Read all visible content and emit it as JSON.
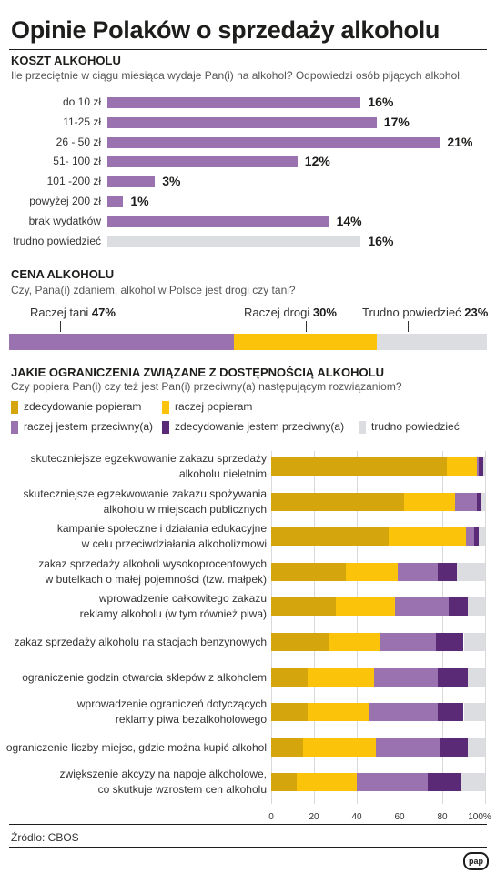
{
  "title": "Opinie Polaków o sprzedaży alkoholu",
  "colors": {
    "purple": "#9b72b0",
    "grey": "#dcdde0",
    "dark_yellow": "#d4a50c",
    "yellow": "#fcc30b",
    "light_purple": "#9b72b0",
    "dark_purple": "#5b2a77"
  },
  "chart_data": [
    {
      "type": "bar",
      "orientation": "horizontal",
      "title": "KOSZT ALKOHOLU",
      "subtitle": "Ile przeciętnie w ciągu miesiąca wydaje Pan(i) na alkohol? Odpowiedzi osób pijących alkohol.",
      "categories": [
        "do 10 zł",
        "11-25 zł",
        "26 - 50 zł",
        "51- 100 zł",
        "101 -200 zł",
        "powyżej 200 zł",
        "brak wydatków",
        "trudno powiedzieć"
      ],
      "values": [
        16,
        17,
        21,
        12,
        3,
        1,
        14,
        16
      ],
      "value_labels": [
        "16%",
        "17%",
        "21%",
        "12%",
        "3%",
        "1%",
        "14%",
        "16%"
      ]
    },
    {
      "type": "bar",
      "orientation": "horizontal",
      "stacked": true,
      "title": "CENA ALKOHOLU",
      "subtitle": "Czy, Pana(i) zdaniem, alkohol w Polsce jest drogi czy tani?",
      "series": [
        {
          "name": "Raczej tani",
          "value": 47,
          "label": "47%"
        },
        {
          "name": "Raczej drogi",
          "value": 30,
          "label": "30%"
        },
        {
          "name": "Trudno powiedzieć",
          "value": 23,
          "label": "23%"
        }
      ]
    },
    {
      "type": "bar",
      "orientation": "horizontal",
      "stacked": true,
      "title": "JAKIE OGRANICZENIA ZWIĄZANE Z DOSTĘPNOŚCIĄ ALKOHOLU",
      "subtitle": "Czy popiera Pan(i) czy też jest Pan(i) przeciwny(a) następującym rozwiązaniom?",
      "legend": [
        "zdecydowanie popieram",
        "raczej popieram",
        "raczej jestem przeciwny(a)",
        "zdecydowanie jestem przeciwny(a)",
        "trudno powiedzieć"
      ],
      "categories": [
        [
          "skuteczniejsze egzekwowanie zakazu sprzedaży",
          "alkoholu nieletnim"
        ],
        [
          "skuteczniejsze egzekwowanie zakazu spożywania",
          "alkoholu w miejscach publicznych"
        ],
        [
          "kampanie społeczne i działania edukacyjne",
          "w celu przeciwdziałania alkoholizmowi"
        ],
        [
          "zakaz sprzedaży alkoholi wysokoprocentowych",
          "w butelkach o małej pojemności (tzw. małpek)"
        ],
        [
          "wprowadzenie całkowitego zakazu",
          "reklamy alkoholu (w tym również piwa)"
        ],
        [
          "zakaz sprzedaży alkoholu na stacjach benzynowych"
        ],
        [
          "ograniczenie godzin otwarcia sklepów z alkoholem"
        ],
        [
          "wprowadzenie ograniczeń dotyczących",
          "reklamy piwa bezalkoholowego"
        ],
        [
          "ograniczenie liczby miejsc, gdzie można kupić alkohol"
        ],
        [
          "zwiększenie akcyzy na napoje alkoholowe,",
          "co skutkuje wzrostem cen alkoholu"
        ]
      ],
      "series": [
        {
          "name": "zdecydowanie popieram",
          "values": [
            82,
            62,
            55,
            35,
            30,
            27,
            17,
            17,
            15,
            12
          ]
        },
        {
          "name": "raczej popieram",
          "values": [
            14,
            24,
            36,
            24,
            28,
            24,
            31,
            29,
            34,
            28
          ]
        },
        {
          "name": "raczej jestem przeciwny(a)",
          "values": [
            1,
            10,
            4,
            19,
            25,
            26,
            30,
            32,
            30,
            33
          ]
        },
        {
          "name": "zdecydowanie jestem przeciwny(a)",
          "values": [
            2,
            2,
            2,
            9,
            9,
            13,
            14,
            12,
            13,
            16
          ]
        },
        {
          "name": "trudno powiedzieć",
          "values": [
            1,
            2,
            3,
            13,
            8,
            10,
            8,
            10,
            8,
            11
          ]
        }
      ],
      "xlim": [
        0,
        100
      ],
      "xticks": [
        "0",
        "20",
        "40",
        "60",
        "80",
        "100%"
      ]
    }
  ],
  "source": "Źródło: CBOS",
  "logo": "pap"
}
